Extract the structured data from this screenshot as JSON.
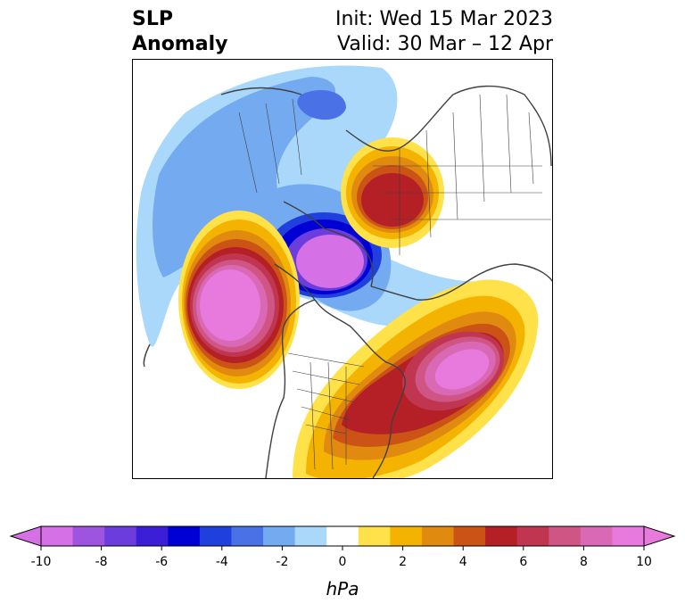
{
  "title": {
    "left_line1": "SLP",
    "left_line2": "Anomaly",
    "right_line1": "Init: Wed 15 Mar 2023",
    "right_line2": "Valid: 30 Mar – 12 Apr"
  },
  "colorbar": {
    "ticks": [
      "-10",
      "-8",
      "-6",
      "-4",
      "-2",
      "0",
      "2",
      "4",
      "6",
      "8",
      "10"
    ],
    "units": "hPa",
    "levels": [
      -10,
      -9,
      -8,
      -7,
      -6,
      -5,
      -4,
      -3,
      -2,
      -1,
      1,
      2,
      3,
      4,
      5,
      6,
      7,
      8,
      9,
      10
    ],
    "colors": [
      "#d670e6",
      "#9d55e0",
      "#6b3ddd",
      "#3b1fd6",
      "#0000d4",
      "#2040dd",
      "#4a72e6",
      "#74abf0",
      "#aad8fb",
      "#ffffff",
      "#ffe24a",
      "#f4b300",
      "#e08a10",
      "#cc5316",
      "#b42025",
      "#c03650",
      "#cf5584",
      "#d968b5",
      "#e879dd"
    ],
    "under_color": "#d670e6",
    "over_color": "#e879dd"
  },
  "colors": {
    "coastline": "#404040",
    "frame": "#000000"
  }
}
